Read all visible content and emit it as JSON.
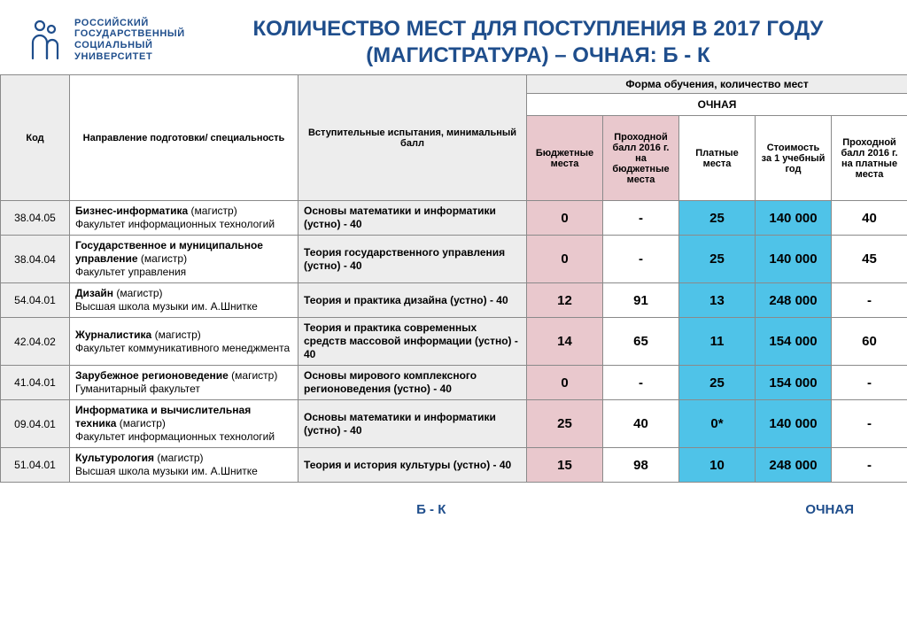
{
  "logo": {
    "line1": "РОССИЙСКИЙ",
    "line2": "ГОСУДАРСТВЕННЫЙ",
    "line3": "СОЦИАЛЬНЫЙ",
    "line4": "УНИВЕРСИТЕТ",
    "color": "#1f4e8c"
  },
  "title": {
    "line1": "КОЛИЧЕСТВО МЕСТ ДЛЯ ПОСТУПЛЕНИЯ В 2017 ГОДУ",
    "line2": "(МАГИСТРАТУРА) – ОЧНАЯ: Б - К"
  },
  "headers": {
    "code": "Код",
    "direction": "Направление подготовки/ специальность",
    "exam": "Вступительные испытания, минимальный балл",
    "form_group": "Форма обучения, количество мест",
    "ochnaya": "ОЧНАЯ",
    "budget": "Бюджетные места",
    "pass_budget": "Проходной балл 2016 г. на бюджетные места",
    "paid": "Платные места",
    "cost": "Стоимость за 1 учебный год",
    "pass_paid": "Проходной балл 2016 г. на платные места"
  },
  "colwidths": {
    "code": 78,
    "dir": 258,
    "exam": 258,
    "c1": 86,
    "c2": 86,
    "c3": 86,
    "c4": 86,
    "c5": 86
  },
  "colors": {
    "header_grey": "#ededed",
    "header_pink": "#e9c8cd",
    "cell_blue": "#4fc3e8",
    "border": "#8a8a8a",
    "brand": "#1f4e8c"
  },
  "rows": [
    {
      "code": "38.04.05",
      "dir_bold": "Бизнес-информатика",
      "dir_rest": " (магистр)\nФакультет информационных технологий",
      "exam": "Основы математики и информатики (устно) - 40",
      "budget": "0",
      "pass_b": "-",
      "paid": "25",
      "cost": "140 000",
      "pass_p": "40"
    },
    {
      "code": "38.04.04",
      "dir_bold": "Государственное и муниципальное управление",
      "dir_rest": " (магистр)\nФакультет управления",
      "exam": "Теория государственного управления (устно) - 40",
      "budget": "0",
      "pass_b": "-",
      "paid": "25",
      "cost": "140 000",
      "pass_p": "45"
    },
    {
      "code": "54.04.01",
      "dir_bold": "Дизайн",
      "dir_rest": " (магистр)\nВысшая школа музыки им. А.Шнитке",
      "exam": "Теория и практика дизайна (устно) - 40",
      "budget": "12",
      "pass_b": "91",
      "paid": "13",
      "cost": "248 000",
      "pass_p": "-"
    },
    {
      "code": "42.04.02",
      "dir_bold": "Журналистика",
      "dir_rest": " (магистр)\nФакультет коммуникативного менеджмента",
      "exam": "Теория и практика современных средств массовой информации (устно) - 40",
      "budget": "14",
      "pass_b": "65",
      "paid": "11",
      "cost": "154 000",
      "pass_p": "60"
    },
    {
      "code": "41.04.01",
      "dir_bold": "Зарубежное регионоведение",
      "dir_rest": " (магистр)\nГуманитарный факультет",
      "exam": "Основы мирового комплексного регионоведения (устно) - 40",
      "budget": "0",
      "pass_b": "-",
      "paid": "25",
      "cost": "154 000",
      "pass_p": "-"
    },
    {
      "code": "09.04.01",
      "dir_bold": "Информатика и вычислительная техника",
      "dir_rest": " (магистр)\nФакультет информационных технологий",
      "exam": "Основы математики и информатики (устно) - 40",
      "budget": "25",
      "pass_b": "40",
      "paid": "0*",
      "cost": "140 000",
      "pass_p": "-"
    },
    {
      "code": "51.04.01",
      "dir_bold": "Культурология",
      "dir_rest": " (магистр)\nВысшая школа музыки им. А.Шнитке",
      "exam": "Теория и история культуры (устно) - 40",
      "budget": "15",
      "pass_b": "98",
      "paid": "10",
      "cost": "248 000",
      "pass_p": "-"
    }
  ],
  "footer": {
    "left": "Б - К",
    "right": "ОЧНАЯ"
  }
}
